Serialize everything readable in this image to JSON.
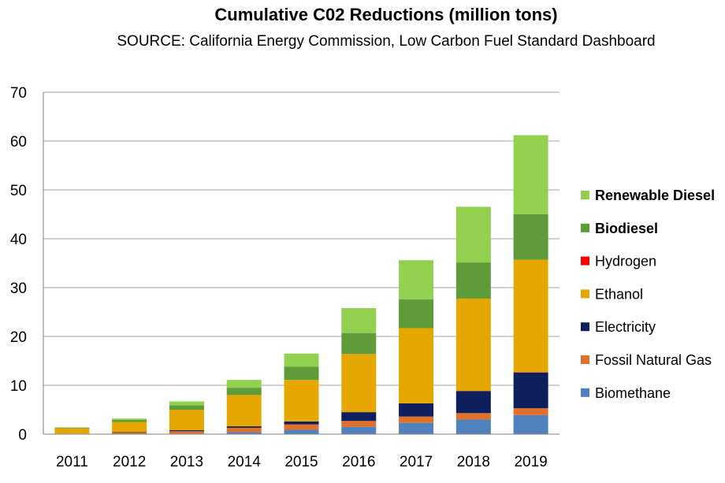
{
  "chart_data": {
    "type": "bar",
    "stacked": true,
    "title": "Cumulative C02 Reductions (million tons)",
    "subtitle": "SOURCE: California Energy Commission, Low Carbon Fuel Standard Dashboard",
    "xlabel": "",
    "ylabel": "",
    "ylim": [
      0,
      70
    ],
    "yticks": [
      0,
      10,
      20,
      30,
      40,
      50,
      60,
      70
    ],
    "grid": true,
    "legend_position": "right",
    "categories": [
      "2011",
      "2012",
      "2013",
      "2014",
      "2015",
      "2016",
      "2017",
      "2018",
      "2019"
    ],
    "series": [
      {
        "name": "Biomethane",
        "color": "#4f81bd",
        "bold": false,
        "values": [
          0,
          0,
          0.1,
          0.4,
          0.9,
          1.5,
          2.3,
          3.0,
          3.9
        ]
      },
      {
        "name": "Fossil Natural Gas",
        "color": "#e0702a",
        "bold": false,
        "values": [
          0.1,
          0.3,
          0.5,
          0.9,
          1.1,
          1.2,
          1.3,
          1.3,
          1.4
        ]
      },
      {
        "name": "Electricity",
        "color": "#0d1f5c",
        "bold": false,
        "values": [
          0,
          0.1,
          0.2,
          0.3,
          0.6,
          1.8,
          2.7,
          4.5,
          7.3
        ]
      },
      {
        "name": "Hydrogen",
        "color": "#ff0000",
        "bold": false,
        "values": [
          0,
          0,
          0,
          0,
          0,
          0,
          0,
          0.05,
          0.1
        ]
      },
      {
        "name": "Ethanol",
        "color": "#e6a800",
        "bold": false,
        "values": [
          1.1,
          2.1,
          4.2,
          6.4,
          8.5,
          11.9,
          15.4,
          18.9,
          23.0
        ]
      },
      {
        "name": "Biodiesel",
        "color": "#5e9c3a",
        "bold": true,
        "values": [
          0.1,
          0.4,
          0.9,
          1.5,
          2.7,
          4.3,
          5.9,
          7.4,
          9.3
        ]
      },
      {
        "name": "Renewable Diesel",
        "color": "#92d050",
        "bold": true,
        "values": [
          0.1,
          0.3,
          0.8,
          1.6,
          2.7,
          5.1,
          8.0,
          11.4,
          16.2
        ]
      }
    ],
    "legend_order": [
      "Renewable Diesel",
      "Biodiesel",
      "Hydrogen",
      "Ethanol",
      "Electricity",
      "Fossil Natural Gas",
      "Biomethane"
    ]
  }
}
